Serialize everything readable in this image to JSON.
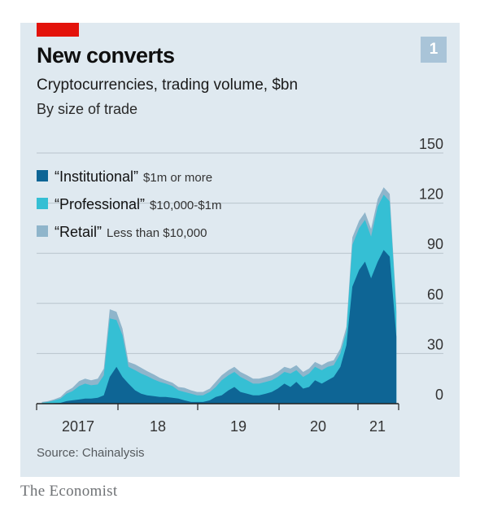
{
  "header": {
    "title": "New converts",
    "subtitle": "Cryptocurrencies, trading volume, $bn",
    "subtitle2": "By size of trade",
    "badge": "1"
  },
  "footer": {
    "source": "Source: Chainalysis",
    "brand": "The Economist"
  },
  "colors": {
    "institutional": "#0e6595",
    "professional": "#35bfd4",
    "retail": "#8fb5cb",
    "accent": "#e3120b"
  },
  "chart_data": {
    "type": "area",
    "stacked": true,
    "title": "New converts",
    "subtitle": "Cryptocurrencies, trading volume, $bn",
    "note": "By size of trade",
    "x_tick_labels": [
      "2017",
      "18",
      "19",
      "20",
      "21"
    ],
    "y_ticks": [
      0,
      30,
      60,
      90,
      120,
      150
    ],
    "ylim": [
      0,
      150
    ],
    "grid": true,
    "y_axis_side": "right",
    "legend_placement": "top-left",
    "x": [
      2016.67,
      2016.75,
      2016.83,
      2016.92,
      2017.0,
      2017.08,
      2017.17,
      2017.25,
      2017.33,
      2017.42,
      2017.5,
      2017.58,
      2017.67,
      2017.75,
      2017.83,
      2017.92,
      2018.0,
      2018.08,
      2018.17,
      2018.25,
      2018.33,
      2018.42,
      2018.5,
      2018.58,
      2018.67,
      2018.75,
      2018.83,
      2018.92,
      2019.0,
      2019.08,
      2019.17,
      2019.25,
      2019.33,
      2019.42,
      2019.5,
      2019.58,
      2019.67,
      2019.75,
      2019.83,
      2019.92,
      2020.0,
      2020.08,
      2020.17,
      2020.25,
      2020.33,
      2020.42,
      2020.5,
      2020.58,
      2020.67,
      2020.75,
      2020.83,
      2020.92,
      2021.0,
      2021.08,
      2021.17,
      2021.25,
      2021.33,
      2021.42
    ],
    "series": [
      {
        "name": "“Institutional”",
        "range": "$1m or more",
        "values": [
          0,
          0,
          0.3,
          0.5,
          1.5,
          2.0,
          2.5,
          3,
          3,
          3.5,
          5,
          16,
          22,
          16,
          12,
          8,
          6,
          5,
          4.5,
          4,
          4,
          3.5,
          3,
          2,
          1,
          1,
          1,
          2,
          4,
          5,
          8,
          10,
          7,
          6,
          5,
          5,
          6,
          7,
          9,
          12,
          10,
          13,
          9,
          10,
          14,
          12,
          14,
          16,
          22,
          35,
          70,
          80,
          85,
          75,
          85,
          92,
          88,
          40
        ]
      },
      {
        "name": "“Professional”",
        "range": "$10,000-$1m",
        "values": [
          0.5,
          1,
          1.5,
          2.5,
          4.5,
          5.5,
          8,
          9,
          8,
          8,
          12,
          35,
          28,
          25,
          10,
          12,
          12,
          11.5,
          10,
          9,
          8,
          7,
          5,
          5,
          5,
          4,
          4,
          5,
          6,
          9,
          9,
          9,
          9,
          8,
          7,
          7,
          7,
          7,
          7,
          7,
          8,
          7,
          7,
          8,
          8,
          8,
          8,
          7,
          8,
          8,
          25,
          25,
          25,
          25,
          33,
          33,
          33,
          15
        ]
      },
      {
        "name": "“Retail”",
        "range": "Less than $10,000",
        "values": [
          0.5,
          0.5,
          0.7,
          1,
          1.5,
          2,
          3,
          3,
          3,
          3.5,
          4,
          5.5,
          5,
          4,
          3,
          3.5,
          3.5,
          3,
          3,
          2.5,
          2,
          2,
          2,
          2.5,
          2,
          2,
          2,
          2,
          3,
          3,
          3,
          3,
          3,
          3,
          3,
          3,
          3,
          3,
          3,
          3,
          3,
          3,
          3,
          3,
          3,
          3,
          3,
          3,
          3,
          3,
          4.5,
          4.5,
          4.5,
          4.5,
          4.5,
          4.5,
          4.5,
          3
        ]
      }
    ]
  }
}
